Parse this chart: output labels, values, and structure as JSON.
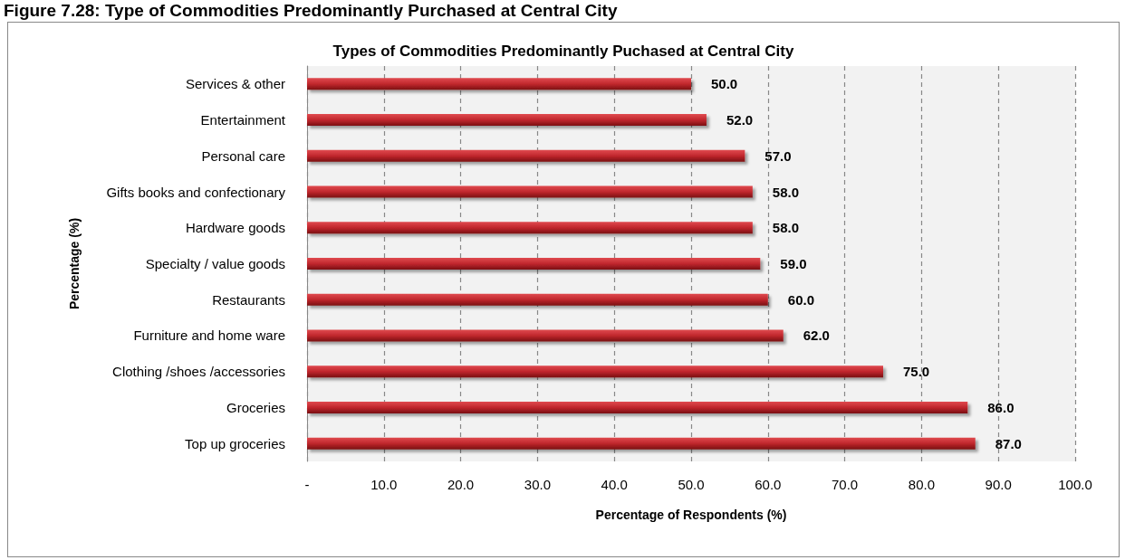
{
  "chart_data": {
    "type": "bar",
    "orientation": "horizontal",
    "title": "Types of Commodities Predominantly Puchased at Central City",
    "annotations": [
      "Figure 7.28: Type of Commodities Predominantly Purchased at Central City"
    ],
    "xlabel": "Percentage of Respondents (%)",
    "ylabel": "Percentage (%)",
    "categories": [
      "Services & other",
      "Entertainment",
      "Personal care",
      "Gifts books and confectionary",
      "Hardware goods",
      "Specialty / value goods",
      "Restaurants",
      "Furniture and home ware",
      "Clothing /shoes /accessories",
      "Groceries",
      "Top up groceries"
    ],
    "values": [
      50.0,
      52.0,
      57.0,
      58.0,
      58.0,
      59.0,
      60.0,
      62.0,
      75.0,
      86.0,
      87.0
    ],
    "value_labels": [
      "50.0",
      "52.0",
      "57.0",
      "58.0",
      "58.0",
      "59.0",
      "60.0",
      "62.0",
      "75.0",
      "86.0",
      "87.0"
    ],
    "color": "#c0272d",
    "xlim": [
      0,
      100
    ],
    "xticks": [
      {
        "value": 0,
        "label": "-"
      },
      {
        "value": 10,
        "label": "10.0"
      },
      {
        "value": 20,
        "label": "20.0"
      },
      {
        "value": 30,
        "label": "30.0"
      },
      {
        "value": 40,
        "label": "40.0"
      },
      {
        "value": 50,
        "label": "50.0"
      },
      {
        "value": 60,
        "label": "60.0"
      },
      {
        "value": 70,
        "label": "70.0"
      },
      {
        "value": 80,
        "label": "80.0"
      },
      {
        "value": 90,
        "label": "90.0"
      },
      {
        "value": 100,
        "label": "100.0"
      }
    ],
    "grid": "x"
  }
}
